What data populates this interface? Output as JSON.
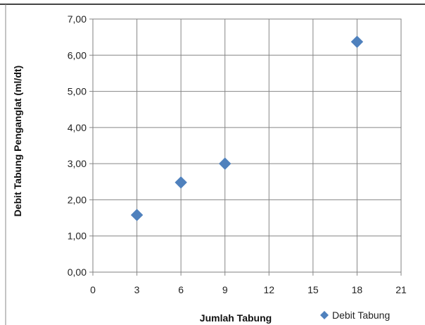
{
  "chart_data": {
    "type": "scatter",
    "title": "",
    "xlabel": "Jumlah Tabung",
    "ylabel": "Debit Tabung Penganglat (ml/dt)",
    "xlim": [
      0,
      21
    ],
    "ylim": [
      0,
      7
    ],
    "x_ticks": [
      "0",
      "3",
      "6",
      "9",
      "12",
      "15",
      "18",
      "21"
    ],
    "y_ticks": [
      "0,00",
      "1,00",
      "2,00",
      "3,00",
      "4,00",
      "5,00",
      "6,00",
      "7,00"
    ],
    "grid": true,
    "legend_position": "bottom-right",
    "series": [
      {
        "name": "Debit Tabung",
        "color": "#4f81bd",
        "marker": "diamond",
        "points": [
          {
            "x": 3,
            "y": 1.58
          },
          {
            "x": 6,
            "y": 2.48
          },
          {
            "x": 9,
            "y": 3.0
          },
          {
            "x": 18,
            "y": 6.37
          }
        ]
      }
    ]
  }
}
